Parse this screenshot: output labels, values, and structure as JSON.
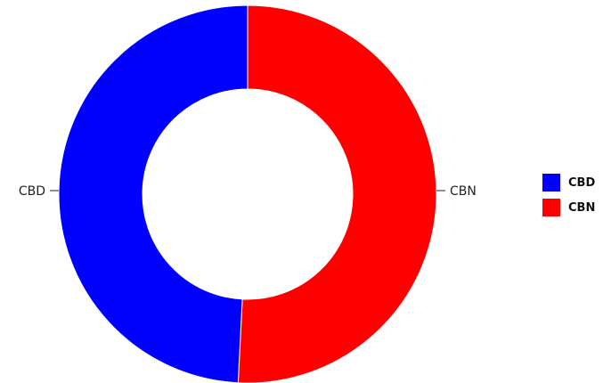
{
  "chart_data": {
    "type": "pie",
    "variant": "donut",
    "categories": [
      "CBD",
      "CBN"
    ],
    "values": [
      49.2,
      50.8
    ],
    "colors": [
      "#0000ff",
      "#ff0000"
    ],
    "title": "",
    "legend": {
      "position": "right",
      "entries": [
        "CBD",
        "CBN"
      ]
    }
  }
}
